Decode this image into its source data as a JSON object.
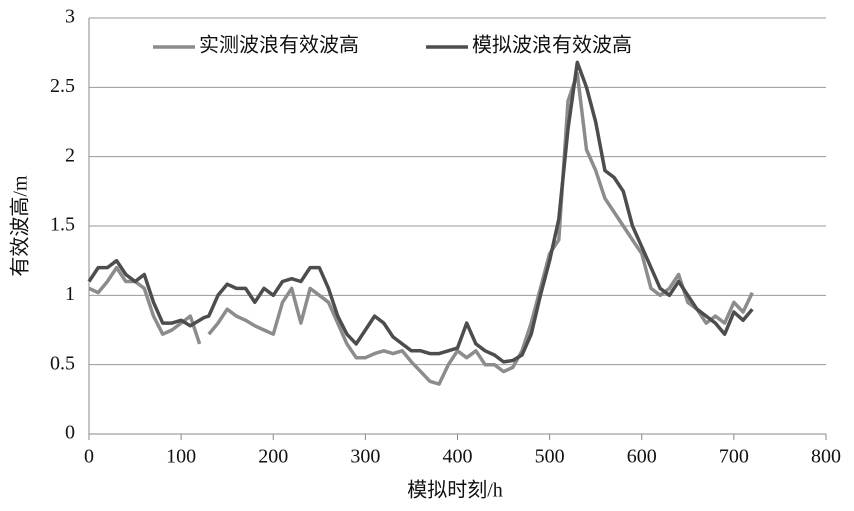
{
  "chart_data": {
    "type": "line",
    "xlabel": "模拟时刻/h",
    "ylabel": "有效波高/m",
    "x": [
      0,
      10,
      20,
      30,
      40,
      50,
      60,
      70,
      80,
      90,
      100,
      110,
      120,
      125,
      130,
      140,
      150,
      160,
      170,
      180,
      190,
      200,
      210,
      220,
      230,
      240,
      250,
      260,
      270,
      280,
      290,
      300,
      310,
      320,
      330,
      340,
      350,
      360,
      370,
      380,
      390,
      400,
      410,
      420,
      430,
      440,
      450,
      460,
      470,
      480,
      490,
      500,
      510,
      520,
      530,
      540,
      550,
      560,
      570,
      580,
      590,
      600,
      610,
      620,
      630,
      640,
      650,
      660,
      670,
      680,
      690,
      700,
      710,
      720
    ],
    "series": [
      {
        "name": "实测波浪有效波高",
        "color": "#8c8c8c",
        "values": [
          1.05,
          1.02,
          1.1,
          1.2,
          1.1,
          1.1,
          1.05,
          0.85,
          0.72,
          0.75,
          0.8,
          0.85,
          0.65,
          null,
          0.72,
          0.8,
          0.9,
          0.85,
          0.82,
          0.78,
          0.75,
          0.72,
          0.95,
          1.05,
          0.8,
          1.05,
          1.0,
          0.95,
          0.8,
          0.65,
          0.55,
          0.55,
          0.58,
          0.6,
          0.58,
          0.6,
          0.52,
          0.45,
          0.38,
          0.36,
          0.5,
          0.6,
          0.55,
          0.6,
          0.5,
          0.5,
          0.45,
          0.48,
          0.6,
          0.8,
          1.05,
          1.3,
          1.4,
          2.4,
          2.6,
          2.05,
          1.9,
          1.7,
          1.6,
          1.5,
          1.4,
          1.3,
          1.05,
          1.0,
          1.05,
          1.15,
          0.95,
          0.9,
          0.8,
          0.85,
          0.8,
          0.95,
          0.88,
          1.02
        ]
      },
      {
        "name": "模拟波浪有效波高",
        "color": "#4d4d4d",
        "values": [
          1.1,
          1.2,
          1.2,
          1.25,
          1.15,
          1.1,
          1.15,
          0.95,
          0.8,
          0.8,
          0.82,
          0.78,
          0.82,
          0.84,
          0.85,
          1.0,
          1.08,
          1.05,
          1.05,
          0.95,
          1.05,
          1.0,
          1.1,
          1.12,
          1.1,
          1.2,
          1.2,
          1.05,
          0.85,
          0.72,
          0.65,
          0.75,
          0.85,
          0.8,
          0.7,
          0.65,
          0.6,
          0.6,
          0.58,
          0.58,
          0.6,
          0.62,
          0.8,
          0.65,
          0.6,
          0.57,
          0.52,
          0.53,
          0.57,
          0.72,
          1.0,
          1.25,
          1.55,
          2.2,
          2.68,
          2.5,
          2.25,
          1.9,
          1.85,
          1.75,
          1.5,
          1.35,
          1.2,
          1.05,
          1.0,
          1.1,
          1.0,
          0.9,
          0.85,
          0.8,
          0.72,
          0.88,
          0.82,
          0.9
        ]
      }
    ],
    "xlim": [
      0,
      800
    ],
    "xticks": [
      0,
      100,
      200,
      300,
      400,
      500,
      600,
      700,
      800
    ],
    "ylim": [
      0,
      3
    ],
    "yticks": [
      0,
      0.5,
      1,
      1.5,
      2,
      2.5,
      3
    ],
    "grid": true
  }
}
